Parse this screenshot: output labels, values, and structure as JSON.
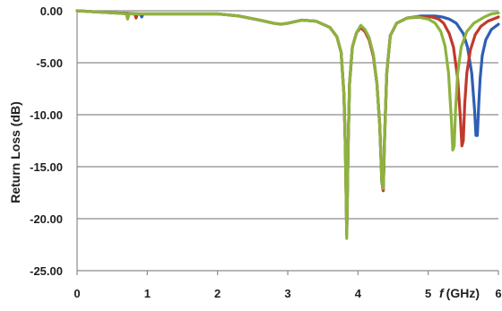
{
  "chart_data": {
    "type": "line",
    "title": "",
    "xlabel": "f",
    "xlabel_unit": "(GHz)",
    "ylabel": "Return Loss (dB)",
    "xlim": [
      0,
      6
    ],
    "ylim": [
      -25,
      0
    ],
    "grid": "horizontal",
    "legend": "none",
    "x_ticks": [
      "0",
      "1",
      "2",
      "3",
      "4",
      "5",
      "6"
    ],
    "y_ticks": [
      "0.00",
      "-5.00",
      "-10.00",
      "-15.00",
      "-20.00",
      "-25.00"
    ],
    "x_tick_values": [
      0,
      1,
      2,
      3,
      4,
      5,
      6
    ],
    "y_tick_values": [
      0,
      -5,
      -10,
      -15,
      -20,
      -25
    ],
    "series": [
      {
        "color": "#2e5fb5",
        "x": [
          0,
          0.5,
          0.9,
          0.92,
          0.94,
          1.0,
          1.5,
          2.0,
          2.3,
          2.6,
          2.8,
          2.9,
          3.0,
          3.2,
          3.4,
          3.6,
          3.7,
          3.76,
          3.8,
          3.82,
          3.84,
          3.86,
          3.88,
          3.92,
          3.98,
          4.04,
          4.1,
          4.16,
          4.22,
          4.27,
          4.31,
          4.34,
          4.36,
          4.38,
          4.41,
          4.46,
          4.55,
          4.7,
          4.9,
          5.1,
          5.2,
          5.3,
          5.4,
          5.5,
          5.56,
          5.62,
          5.66,
          5.68,
          5.7,
          5.72,
          5.74,
          5.77,
          5.82,
          5.9,
          6.0
        ],
        "y": [
          0,
          -0.2,
          -0.3,
          -0.6,
          -0.3,
          -0.3,
          -0.3,
          -0.3,
          -0.5,
          -0.9,
          -1.2,
          -1.3,
          -1.2,
          -0.9,
          -1.0,
          -1.6,
          -2.5,
          -4.0,
          -8.0,
          -13.0,
          -21.5,
          -13.0,
          -7.0,
          -3.5,
          -2.1,
          -1.6,
          -2.0,
          -2.8,
          -4.4,
          -7.0,
          -11.0,
          -16.5,
          -17.3,
          -12.0,
          -6.0,
          -2.4,
          -1.2,
          -0.7,
          -0.5,
          -0.5,
          -0.6,
          -0.8,
          -1.2,
          -2.2,
          -3.5,
          -6.0,
          -9.5,
          -12.0,
          -12.0,
          -9.0,
          -6.5,
          -4.3,
          -2.8,
          -1.8,
          -1.3
        ]
      },
      {
        "color": "#c0392b",
        "x": [
          0,
          0.5,
          0.82,
          0.84,
          0.86,
          1.0,
          1.5,
          2.0,
          2.3,
          2.6,
          2.8,
          2.9,
          3.0,
          3.2,
          3.4,
          3.6,
          3.7,
          3.76,
          3.8,
          3.82,
          3.84,
          3.86,
          3.88,
          3.92,
          3.98,
          4.04,
          4.1,
          4.16,
          4.22,
          4.27,
          4.31,
          4.34,
          4.36,
          4.38,
          4.41,
          4.46,
          4.55,
          4.7,
          4.9,
          5.05,
          5.15,
          5.22,
          5.3,
          5.36,
          5.42,
          5.46,
          5.48,
          5.5,
          5.52,
          5.55,
          5.6,
          5.67,
          5.75,
          5.85,
          6.0
        ],
        "y": [
          0,
          -0.2,
          -0.3,
          -0.7,
          -0.3,
          -0.3,
          -0.3,
          -0.3,
          -0.5,
          -0.9,
          -1.2,
          -1.3,
          -1.2,
          -0.9,
          -1.0,
          -1.6,
          -2.5,
          -4.0,
          -8.0,
          -13.0,
          -21.5,
          -13.0,
          -7.0,
          -3.5,
          -2.1,
          -1.6,
          -2.0,
          -2.8,
          -4.4,
          -7.0,
          -11.0,
          -16.5,
          -17.3,
          -12.0,
          -6.0,
          -2.4,
          -1.2,
          -0.7,
          -0.6,
          -0.6,
          -0.8,
          -1.2,
          -2.2,
          -3.5,
          -6.5,
          -10.5,
          -13.0,
          -12.5,
          -9.0,
          -6.0,
          -3.8,
          -2.3,
          -1.5,
          -1.0,
          -0.6
        ]
      },
      {
        "color": "#8db33e",
        "x": [
          0,
          0.5,
          0.7,
          0.72,
          0.74,
          1.0,
          1.5,
          2.0,
          2.3,
          2.6,
          2.8,
          2.9,
          3.0,
          3.2,
          3.4,
          3.6,
          3.7,
          3.76,
          3.8,
          3.82,
          3.84,
          3.86,
          3.88,
          3.92,
          3.98,
          4.04,
          4.1,
          4.16,
          4.22,
          4.27,
          4.31,
          4.34,
          4.36,
          4.38,
          4.41,
          4.46,
          4.55,
          4.7,
          4.85,
          5.0,
          5.1,
          5.18,
          5.24,
          5.29,
          5.33,
          5.35,
          5.37,
          5.39,
          5.42,
          5.47,
          5.55,
          5.65,
          5.8,
          5.9,
          6.0
        ],
        "y": [
          0,
          -0.2,
          -0.3,
          -0.8,
          -0.3,
          -0.3,
          -0.3,
          -0.3,
          -0.5,
          -0.9,
          -1.2,
          -1.3,
          -1.2,
          -0.9,
          -1.0,
          -1.6,
          -2.5,
          -4.0,
          -8.0,
          -13.0,
          -21.9,
          -13.0,
          -7.0,
          -3.5,
          -2.1,
          -1.4,
          -1.8,
          -2.6,
          -4.2,
          -7.0,
          -11.0,
          -16.5,
          -17.1,
          -12.0,
          -6.0,
          -2.4,
          -1.2,
          -0.7,
          -0.6,
          -0.8,
          -1.2,
          -2.0,
          -3.4,
          -6.0,
          -10.5,
          -13.4,
          -13.0,
          -9.5,
          -6.0,
          -3.5,
          -2.0,
          -1.2,
          -0.6,
          -0.3,
          -0.2
        ]
      }
    ]
  }
}
